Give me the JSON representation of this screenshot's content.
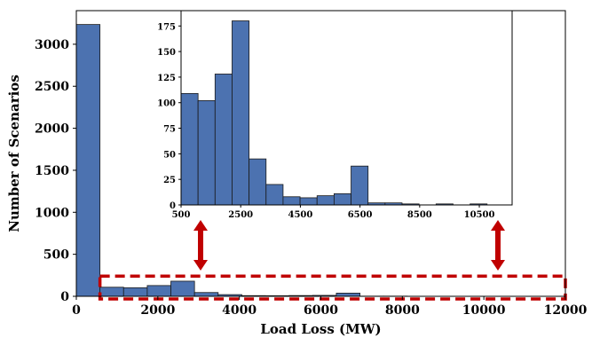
{
  "chart_data": [
    {
      "type": "bar",
      "role": "main",
      "xlabel": "Load Loss (MW)",
      "ylabel": "Number of Scenarios",
      "xlim": [
        0,
        12000
      ],
      "ylim": [
        0,
        3400
      ],
      "xticks": [
        0,
        2000,
        4000,
        6000,
        8000,
        10000,
        12000
      ],
      "yticks": [
        0,
        500,
        1000,
        1500,
        2000,
        2500,
        3000
      ],
      "xtick_labels": [
        "0",
        "2000",
        "4000",
        "6000",
        "8000",
        "10000",
        "12000"
      ],
      "ytick_labels": [
        "0",
        "500",
        "1000",
        "1500",
        "2000",
        "2500",
        "3000"
      ],
      "bin_edges": [
        0,
        580,
        1160,
        1740,
        2320,
        2900,
        3480,
        4060,
        4640,
        5220,
        5800,
        6380,
        6960,
        7540,
        8120,
        8700,
        9280,
        9860,
        10440,
        11020,
        11600
      ],
      "values": [
        3235,
        108,
        102,
        128,
        180,
        45,
        20,
        8,
        7,
        9,
        11,
        38,
        2,
        2,
        1,
        0,
        1,
        0,
        1,
        0
      ],
      "color": "#4c72b0",
      "highlight_box": {
        "x_range": [
          580,
          12000
        ],
        "y_range": [
          0,
          240
        ],
        "color": "#c00000",
        "style": "dashed"
      }
    },
    {
      "type": "bar",
      "role": "inset",
      "xlim": [
        500,
        11600
      ],
      "ylim": [
        0,
        190
      ],
      "xticks": [
        500,
        2500,
        4500,
        6500,
        8500,
        10500
      ],
      "yticks": [
        0,
        25,
        50,
        75,
        100,
        125,
        150,
        175
      ],
      "xtick_labels": [
        "500",
        "2500",
        "4500",
        "6500",
        "8500",
        "10500"
      ],
      "ytick_labels": [
        "0",
        "25",
        "50",
        "75",
        "100",
        "125",
        "150",
        "175"
      ],
      "bin_edges": [
        500,
        1070,
        1640,
        2210,
        2780,
        3350,
        3920,
        4490,
        5060,
        5630,
        6200,
        6770,
        7340,
        7910,
        8480,
        9050,
        9620,
        10190,
        10760,
        11330
      ],
      "values": [
        109,
        102,
        128,
        180,
        45,
        20,
        8,
        7,
        9,
        11,
        38,
        2,
        2,
        1,
        0,
        1,
        0,
        1,
        0
      ],
      "color": "#4c72b0"
    }
  ],
  "arrows": {
    "color": "#c00000"
  }
}
